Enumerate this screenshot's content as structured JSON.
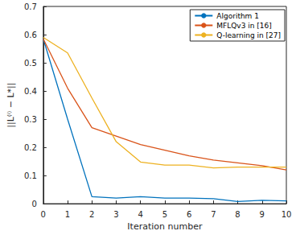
{
  "chart_data": {
    "type": "line",
    "x_label": "Iteration number",
    "y_label": "||L⁽ⁱ⁾ − L*||",
    "x": [
      0,
      1,
      2,
      3,
      4,
      5,
      6,
      7,
      8,
      9,
      10
    ],
    "series": [
      {
        "name": "Algorithm 1",
        "color": "#0072bd",
        "values": [
          0.585,
          0.3,
          0.025,
          0.02,
          0.025,
          0.02,
          0.02,
          0.018,
          0.008,
          0.012,
          0.01
        ]
      },
      {
        "name": "MFLQv3 in [16]",
        "color": "#d95319",
        "values": [
          0.585,
          0.41,
          0.27,
          0.24,
          0.21,
          0.19,
          0.17,
          0.155,
          0.145,
          0.135,
          0.12
        ]
      },
      {
        "name": "Q-learning in [27]",
        "color": "#edb120",
        "values": [
          0.59,
          0.535,
          0.375,
          0.22,
          0.148,
          0.137,
          0.137,
          0.127,
          0.13,
          0.13,
          0.13
        ]
      }
    ],
    "xlim": [
      0,
      10
    ],
    "xticks": [
      0,
      1,
      2,
      3,
      4,
      5,
      6,
      7,
      8,
      9,
      10
    ],
    "ylim": [
      0,
      0.7
    ],
    "yticks": [
      0,
      0.1,
      0.2,
      0.3,
      0.4,
      0.5,
      0.6,
      0.7
    ],
    "grid": false,
    "legend": "upper right"
  }
}
